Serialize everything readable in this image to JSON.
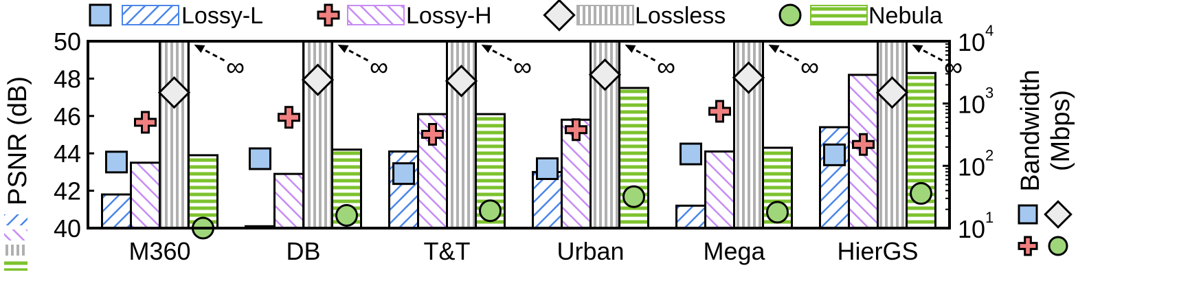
{
  "chart_data": {
    "type": "bar",
    "categories": [
      "M360",
      "DB",
      "T&T",
      "Urban",
      "Mega",
      "HierGS"
    ],
    "ylabel": "PSNR (dB)",
    "y2label_line1": "Bandwidth",
    "y2label_line2": "(Mbps)",
    "ylim": [
      40,
      50
    ],
    "yticks": [
      "40",
      "42",
      "44",
      "46",
      "48",
      "50"
    ],
    "y2scale": "log",
    "y2lim": [
      10,
      10000
    ],
    "y2ticks": [
      {
        "base": "10",
        "exp": "1",
        "value": 10
      },
      {
        "base": "10",
        "exp": "2",
        "value": 100
      },
      {
        "base": "10",
        "exp": "3",
        "value": 1000
      },
      {
        "base": "10",
        "exp": "4",
        "value": 10000
      }
    ],
    "infinity_label": "∞",
    "series": [
      {
        "name": "Lossy-L",
        "color": "#4a86e8",
        "marker_fill": "#a4c8f0",
        "marker": "square",
        "psnr": [
          41.8,
          40.1,
          44.1,
          43.0,
          41.2,
          45.4
        ],
        "bandwidth": [
          115,
          130,
          75,
          90,
          155,
          150
        ]
      },
      {
        "name": "Lossy-H",
        "color": "#c78bf5",
        "marker_fill": "#f08080",
        "marker": "cross",
        "psnr": [
          43.5,
          42.9,
          46.1,
          45.8,
          44.1,
          48.2
        ],
        "bandwidth": [
          500,
          600,
          320,
          380,
          750,
          220
        ]
      },
      {
        "name": "Lossless",
        "color": "#b0b0b0",
        "marker_fill": "#ececec",
        "marker": "diamond",
        "psnr": [
          50,
          50,
          50,
          50,
          50,
          50
        ],
        "bandwidth": [
          1500,
          2400,
          2300,
          2900,
          2600,
          1500
        ],
        "infinite": true
      },
      {
        "name": "Nebula",
        "color": "#7cc22e",
        "marker_fill": "#9fd67a",
        "marker": "circle",
        "psnr": [
          43.9,
          44.2,
          46.1,
          47.5,
          44.3,
          48.3
        ],
        "bandwidth": [
          10,
          16,
          19,
          32,
          18,
          36
        ]
      }
    ],
    "legend_position": "top"
  }
}
